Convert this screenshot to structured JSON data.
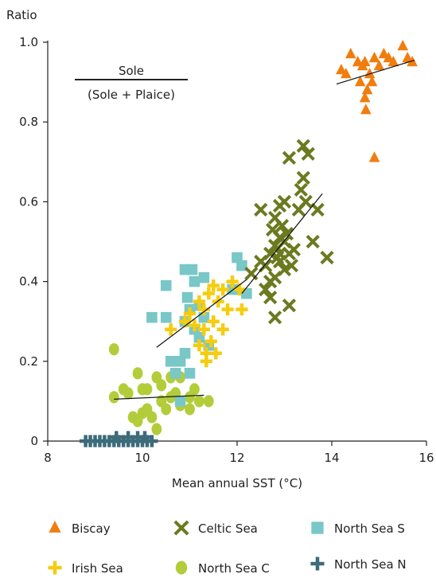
{
  "chart_data": {
    "type": "scatter",
    "title": "",
    "xlabel": "Mean annual SST (°C)",
    "ylabel": "Ratio",
    "xlim": [
      8,
      16
    ],
    "ylim": [
      0,
      1.0
    ],
    "xticks": [
      8,
      10,
      12,
      14,
      16
    ],
    "yticks": [
      0,
      0.2,
      0.4,
      0.6,
      0.8,
      1.0
    ],
    "xtick_labels": [
      "8",
      "10",
      "12",
      "14",
      "16"
    ],
    "ytick_labels": [
      "0",
      "0.2",
      "0.4",
      "0.6",
      "0.8",
      "1.0"
    ],
    "grid": false,
    "legend_position": "bottom",
    "annotation": {
      "numerator": "Sole",
      "denominator": "(Sole + Plaice)"
    },
    "colors": {
      "Biscay": "#f07d0e",
      "Celtic Sea": "#6b7a1f",
      "North Sea S": "#79c7c7",
      "Irish Sea": "#f5cc0f",
      "North Sea C": "#b3cc3a",
      "North Sea N": "#3d6b7a"
    },
    "series": [
      {
        "name": "Biscay",
        "marker": "triangle",
        "points": [
          [
            14.4,
            0.97
          ],
          [
            14.55,
            0.95
          ],
          [
            14.2,
            0.93
          ],
          [
            14.3,
            0.92
          ],
          [
            14.7,
            0.95
          ],
          [
            14.9,
            0.96
          ],
          [
            15.1,
            0.97
          ],
          [
            15.5,
            0.99
          ],
          [
            15.6,
            0.96
          ],
          [
            15.7,
            0.95
          ],
          [
            15.3,
            0.95
          ],
          [
            14.6,
            0.9
          ],
          [
            14.75,
            0.88
          ],
          [
            14.85,
            0.9
          ],
          [
            14.7,
            0.86
          ],
          [
            14.8,
            0.92
          ],
          [
            15.0,
            0.94
          ],
          [
            14.72,
            0.83
          ],
          [
            14.9,
            0.71
          ],
          [
            15.2,
            0.96
          ],
          [
            14.65,
            0.94
          ]
        ],
        "fit": [
          [
            14.1,
            0.895
          ],
          [
            15.75,
            0.955
          ]
        ]
      },
      {
        "name": "Celtic Sea",
        "marker": "x",
        "points": [
          [
            13.4,
            0.74
          ],
          [
            13.1,
            0.71
          ],
          [
            13.5,
            0.72
          ],
          [
            13.4,
            0.66
          ],
          [
            13.35,
            0.63
          ],
          [
            13.45,
            0.6
          ],
          [
            13.0,
            0.6
          ],
          [
            12.9,
            0.59
          ],
          [
            12.5,
            0.58
          ],
          [
            12.8,
            0.56
          ],
          [
            13.3,
            0.58
          ],
          [
            13.7,
            0.58
          ],
          [
            12.95,
            0.54
          ],
          [
            12.75,
            0.53
          ],
          [
            12.9,
            0.51
          ],
          [
            12.8,
            0.49
          ],
          [
            13.0,
            0.5
          ],
          [
            13.6,
            0.5
          ],
          [
            12.7,
            0.47
          ],
          [
            12.9,
            0.45
          ],
          [
            13.1,
            0.47
          ],
          [
            12.6,
            0.44
          ],
          [
            13.0,
            0.43
          ],
          [
            12.8,
            0.41
          ],
          [
            12.6,
            0.38
          ],
          [
            12.7,
            0.36
          ],
          [
            13.1,
            0.34
          ],
          [
            12.8,
            0.31
          ],
          [
            13.9,
            0.46
          ],
          [
            12.9,
            0.47
          ],
          [
            13.05,
            0.52
          ],
          [
            12.85,
            0.46
          ],
          [
            13.2,
            0.48
          ],
          [
            12.7,
            0.4
          ],
          [
            12.3,
            0.42
          ],
          [
            12.5,
            0.45
          ],
          [
            13.15,
            0.44
          ]
        ],
        "fit": [
          [
            12.1,
            0.37
          ],
          [
            13.8,
            0.62
          ]
        ]
      },
      {
        "name": "North Sea S",
        "marker": "square",
        "points": [
          [
            10.2,
            0.31
          ],
          [
            10.5,
            0.39
          ],
          [
            10.5,
            0.31
          ],
          [
            10.9,
            0.43
          ],
          [
            11.05,
            0.43
          ],
          [
            11.1,
            0.4
          ],
          [
            11.3,
            0.41
          ],
          [
            11.0,
            0.33
          ],
          [
            11.2,
            0.34
          ],
          [
            10.9,
            0.3
          ],
          [
            11.1,
            0.28
          ],
          [
            11.3,
            0.31
          ],
          [
            11.4,
            0.24
          ],
          [
            10.9,
            0.22
          ],
          [
            10.8,
            0.2
          ],
          [
            10.6,
            0.2
          ],
          [
            10.7,
            0.17
          ],
          [
            11.0,
            0.17
          ],
          [
            10.8,
            0.1
          ],
          [
            12.0,
            0.46
          ],
          [
            12.1,
            0.44
          ],
          [
            12.2,
            0.37
          ],
          [
            11.9,
            0.38
          ],
          [
            10.95,
            0.36
          ],
          [
            11.2,
            0.26
          ]
        ],
        "fit": []
      },
      {
        "name": "Irish Sea",
        "marker": "plus",
        "points": [
          [
            10.6,
            0.28
          ],
          [
            10.9,
            0.3
          ],
          [
            11.0,
            0.32
          ],
          [
            11.2,
            0.35
          ],
          [
            11.3,
            0.33
          ],
          [
            11.4,
            0.37
          ],
          [
            11.5,
            0.39
          ],
          [
            11.7,
            0.38
          ],
          [
            11.9,
            0.4
          ],
          [
            12.05,
            0.38
          ],
          [
            11.1,
            0.29
          ],
          [
            11.3,
            0.28
          ],
          [
            11.5,
            0.3
          ],
          [
            11.7,
            0.28
          ],
          [
            11.2,
            0.24
          ],
          [
            11.35,
            0.22
          ],
          [
            11.55,
            0.22
          ],
          [
            11.35,
            0.2
          ],
          [
            11.8,
            0.33
          ],
          [
            12.1,
            0.33
          ],
          [
            11.6,
            0.35
          ],
          [
            11.45,
            0.25
          ]
        ],
        "fit": [
          [
            10.3,
            0.235
          ],
          [
            12.2,
            0.405
          ]
        ]
      },
      {
        "name": "North Sea C",
        "marker": "circle",
        "points": [
          [
            9.4,
            0.23
          ],
          [
            9.4,
            0.11
          ],
          [
            9.6,
            0.13
          ],
          [
            9.7,
            0.12
          ],
          [
            9.9,
            0.17
          ],
          [
            10.0,
            0.13
          ],
          [
            10.1,
            0.13
          ],
          [
            10.3,
            0.16
          ],
          [
            10.4,
            0.14
          ],
          [
            10.6,
            0.16
          ],
          [
            10.7,
            0.12
          ],
          [
            10.8,
            0.16
          ],
          [
            10.4,
            0.1
          ],
          [
            10.5,
            0.08
          ],
          [
            10.6,
            0.11
          ],
          [
            10.8,
            0.09
          ],
          [
            11.0,
            0.11
          ],
          [
            11.2,
            0.1
          ],
          [
            11.4,
            0.1
          ],
          [
            9.8,
            0.06
          ],
          [
            9.9,
            0.05
          ],
          [
            10.0,
            0.07
          ],
          [
            10.1,
            0.08
          ],
          [
            10.2,
            0.06
          ],
          [
            10.3,
            0.03
          ],
          [
            11.1,
            0.13
          ],
          [
            11.0,
            0.08
          ]
        ],
        "fit": [
          [
            9.4,
            0.105
          ],
          [
            11.3,
            0.115
          ]
        ]
      },
      {
        "name": "North Sea N",
        "marker": "cross",
        "points": [
          [
            8.8,
            0.0
          ],
          [
            8.9,
            0.0
          ],
          [
            9.0,
            0.0
          ],
          [
            9.1,
            0.0
          ],
          [
            9.2,
            0.0
          ],
          [
            9.3,
            0.0
          ],
          [
            9.4,
            0.0
          ],
          [
            9.5,
            0.0
          ],
          [
            9.6,
            0.0
          ],
          [
            9.7,
            0.0
          ],
          [
            9.8,
            0.0
          ],
          [
            9.9,
            0.0
          ],
          [
            10.0,
            0.0
          ],
          [
            10.1,
            0.0
          ],
          [
            10.2,
            0.0
          ],
          [
            9.45,
            0.01
          ],
          [
            9.7,
            0.01
          ],
          [
            9.9,
            0.01
          ],
          [
            10.05,
            0.01
          ]
        ],
        "fit": []
      }
    ]
  }
}
